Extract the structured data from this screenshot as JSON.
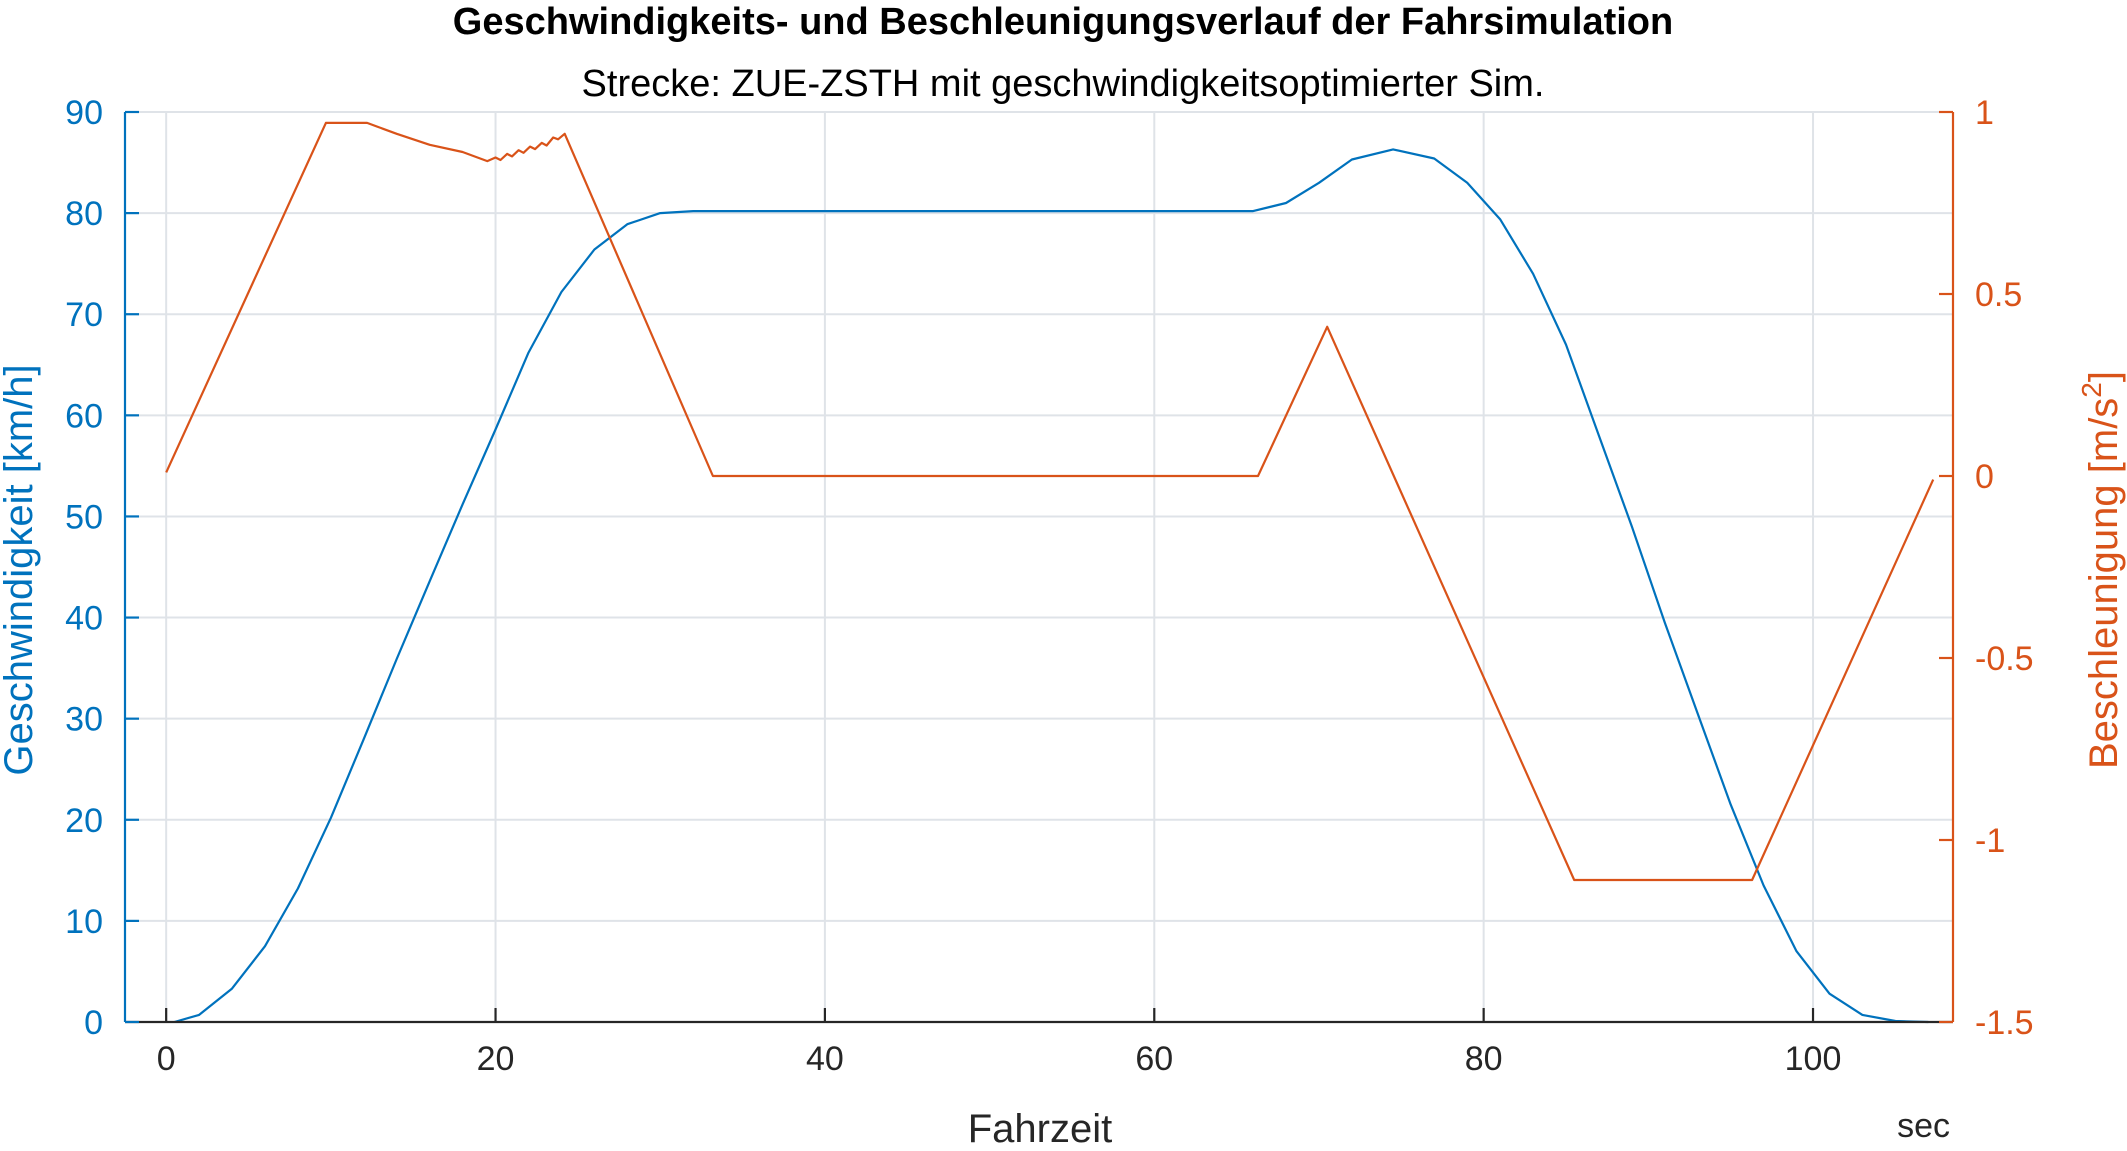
{
  "chart_data": {
    "type": "line",
    "title": "Geschwindigkeits- und Beschleunigungsverlauf der Fahrsimulation",
    "subtitle": "Strecke: ZUE-ZSTH mit geschwindigkeitsoptimierter Sim.",
    "xlabel": "Fahrzeit",
    "x_unit": "sec",
    "ylabel_left": "Geschwindigkeit [km/h]",
    "ylabel_right_base": "Beschleunigung [m/s",
    "ylabel_right_sup": "2",
    "ylabel_right_end": "]",
    "xlim": [
      -2.5,
      108.5
    ],
    "ylim_left": [
      0,
      90
    ],
    "ylim_right": [
      -1.5,
      1
    ],
    "xticks": [
      0,
      20,
      40,
      60,
      80,
      100
    ],
    "yticks_left": [
      0,
      10,
      20,
      30,
      40,
      50,
      60,
      70,
      80,
      90
    ],
    "yticks_right": [
      1,
      0.5,
      0,
      -0.5,
      -1,
      -1.5
    ],
    "grid": true,
    "colors": {
      "left": "#0072bd",
      "right": "#d95319"
    },
    "series": [
      {
        "axis": "left",
        "color": "#0072bd",
        "x": [
          0.5,
          2,
          4,
          6,
          8,
          10,
          12,
          14,
          16,
          18,
          20,
          22,
          24,
          26,
          28,
          30,
          32,
          33,
          40,
          50,
          60,
          66,
          68,
          70,
          72,
          74.5,
          77,
          79,
          81,
          83,
          85,
          87,
          89,
          91,
          93,
          95,
          97,
          99,
          101,
          103,
          105,
          107
        ],
        "y": [
          0,
          0.7,
          3.3,
          7.5,
          13.2,
          20.2,
          28,
          35.9,
          43.6,
          51.2,
          58.6,
          66.2,
          72.2,
          76.4,
          78.9,
          80.0,
          80.2,
          80.2,
          80.2,
          80.2,
          80.2,
          80.2,
          81.0,
          83.0,
          85.3,
          86.3,
          85.4,
          83.0,
          79.4,
          74.0,
          67.0,
          58.0,
          49.0,
          39.5,
          30.5,
          21.5,
          13.5,
          7.0,
          2.8,
          0.7,
          0.1,
          0
        ]
      },
      {
        "axis": "right",
        "color": "#d95319",
        "x": [
          0,
          9.7,
          12.2,
          14,
          16,
          18,
          19.5,
          20,
          20.3,
          20.7,
          21,
          21.4,
          21.7,
          22.1,
          22.4,
          22.8,
          23.1,
          23.5,
          23.8,
          24.2,
          33.2,
          66.3,
          70.5,
          85.5,
          96.3,
          107.3
        ],
        "y": [
          0.01,
          0.97,
          0.97,
          0.94,
          0.91,
          0.89,
          0.865,
          0.875,
          0.868,
          0.885,
          0.878,
          0.895,
          0.888,
          0.905,
          0.898,
          0.915,
          0.908,
          0.93,
          0.925,
          0.94,
          0.0,
          0.0,
          0.41,
          -1.11,
          -1.11,
          -0.01
        ]
      }
    ]
  }
}
